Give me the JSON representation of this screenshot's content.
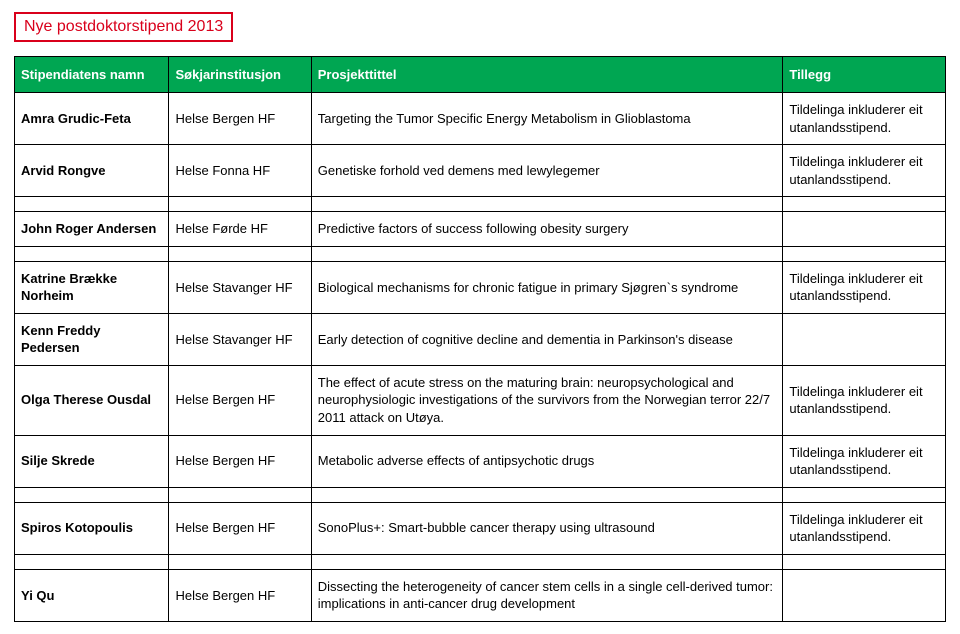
{
  "title": "Nye postdoktorstipend 2013",
  "table": {
    "columns": [
      "Stipendiatens namn",
      "Søkjarinstitusjon",
      "Prosjekttittel",
      "Tillegg"
    ],
    "header_bg": "#00a652",
    "header_fg": "#ffffff",
    "border_color": "#000000",
    "title_color": "#d9001b",
    "groups": [
      {
        "rows": [
          {
            "name": "Amra Grudic-Feta",
            "inst": "Helse Bergen HF",
            "proj": "Targeting the Tumor Specific Energy Metabolism in Glioblastoma",
            "extra": "Tildelinga inkluderer eit utanlandsstipend."
          },
          {
            "name": "Arvid Rongve",
            "inst": "Helse Fonna HF",
            "proj": "Genetiske forhold ved demens med lewylegemer",
            "extra": "Tildelinga inkluderer eit utanlandsstipend."
          }
        ]
      },
      {
        "rows": [
          {
            "name": "John Roger Andersen",
            "inst": "Helse Førde HF",
            "proj": "Predictive factors of success following obesity surgery",
            "extra": ""
          }
        ]
      },
      {
        "rows": [
          {
            "name": "Katrine Brække Norheim",
            "inst": "Helse Stavanger HF",
            "proj": "Biological mechanisms for chronic fatigue in primary Sjøgren`s syndrome",
            "extra": "Tildelinga inkluderer eit utanlandsstipend."
          },
          {
            "name": "Kenn Freddy Pedersen",
            "inst": "Helse Stavanger HF",
            "proj": "Early detection of cognitive decline and dementia in Parkinson's disease",
            "extra": ""
          },
          {
            "name": "Olga Therese Ousdal",
            "inst": "Helse Bergen HF",
            "proj": "The effect of acute stress on the maturing brain: neuropsychological and neurophysiologic investigations of the survivors from the Norwegian terror 22/7 2011 attack on Utøya.",
            "extra": "Tildelinga inkluderer eit utanlandsstipend."
          },
          {
            "name": "Silje Skrede",
            "inst": "Helse Bergen HF",
            "proj": "Metabolic adverse effects of antipsychotic drugs",
            "extra": "Tildelinga inkluderer eit utanlandsstipend."
          }
        ]
      },
      {
        "rows": [
          {
            "name": "Spiros Kotopoulis",
            "inst": "Helse Bergen HF",
            "proj": "SonoPlus+: Smart-bubble cancer therapy using ultrasound",
            "extra": "Tildelinga inkluderer eit utanlandsstipend."
          }
        ]
      },
      {
        "rows": [
          {
            "name": "Yi Qu",
            "inst": "Helse Bergen HF",
            "proj": "Dissecting the heterogeneity of cancer stem cells in a single cell-derived tumor: implications in anti-cancer drug development",
            "extra": ""
          }
        ]
      }
    ]
  }
}
